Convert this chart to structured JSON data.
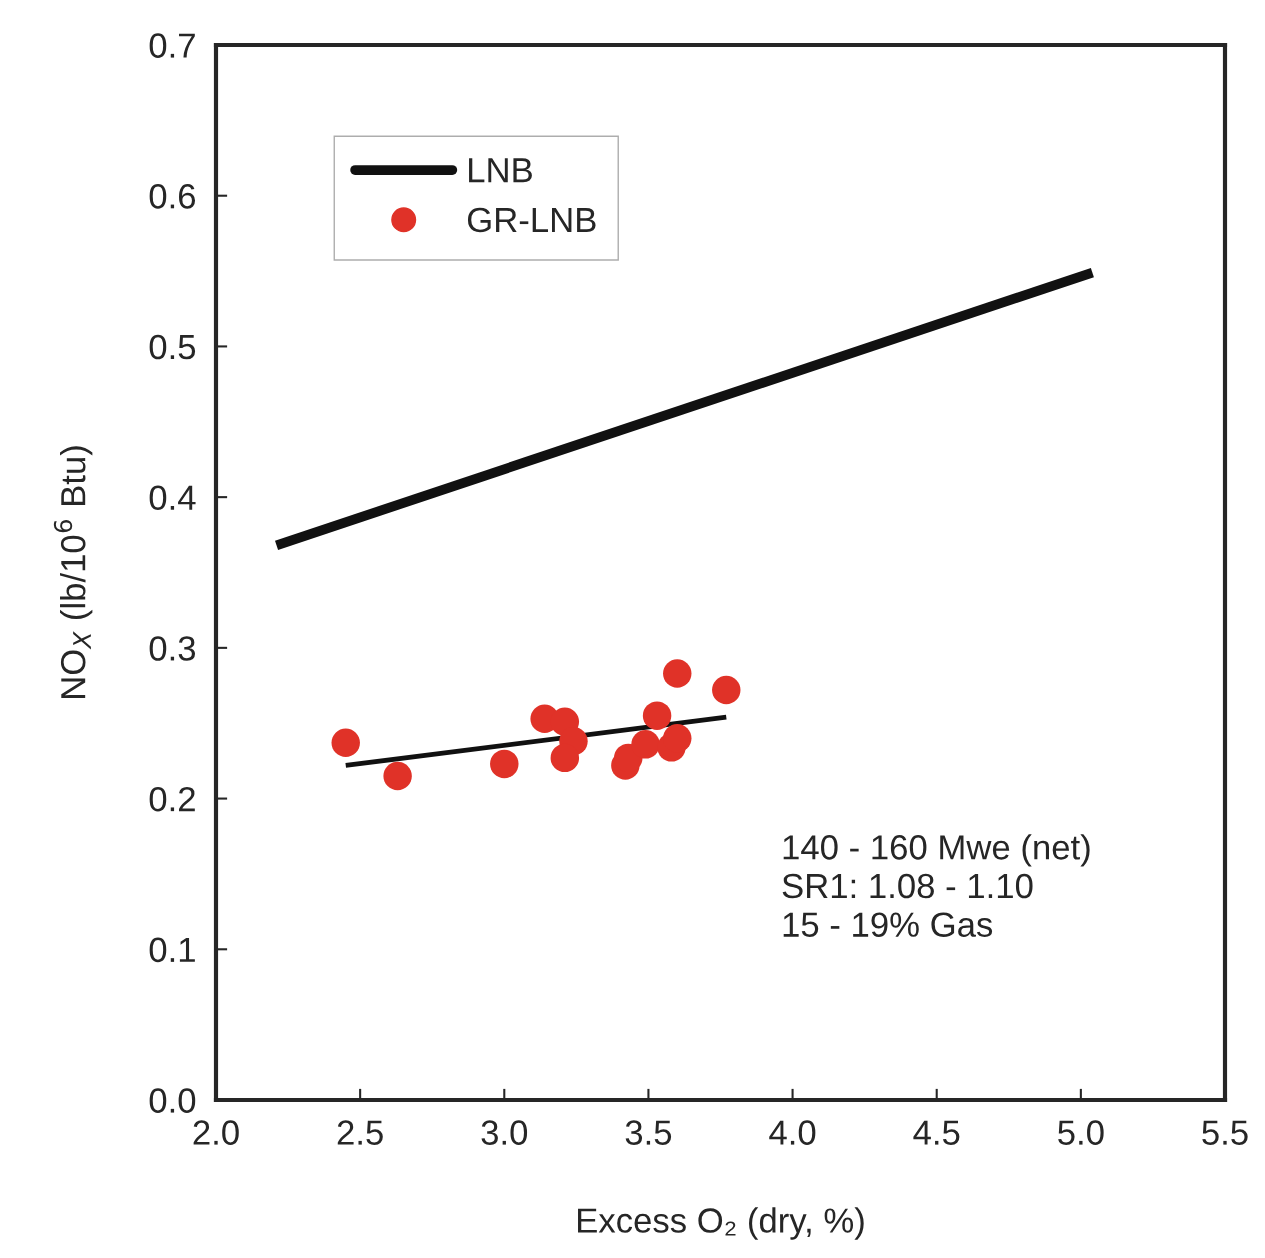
{
  "chart_data": {
    "type": "scatter",
    "xlabel": "Excess O₂ (dry, %)",
    "ylabel": "NO$_{X}$ (lb/10$^{6}$ Btu)",
    "xlim": [
      2.0,
      5.5
    ],
    "ylim": [
      0.0,
      0.7
    ],
    "xticks": [
      {
        "value": 2.0,
        "label": "2.0"
      },
      {
        "value": 2.5,
        "label": "2.5"
      },
      {
        "value": 3.0,
        "label": "3.0"
      },
      {
        "value": 3.5,
        "label": "3.5"
      },
      {
        "value": 4.0,
        "label": "4.0"
      },
      {
        "value": 4.5,
        "label": "4.5"
      },
      {
        "value": 5.0,
        "label": "5.0"
      },
      {
        "value": 5.5,
        "label": "5.5"
      }
    ],
    "yticks": [
      {
        "value": 0.0,
        "label": "0.0"
      },
      0.1,
      0.2,
      0.3,
      0.4,
      0.5,
      0.6,
      0.7
    ],
    "grid": false,
    "legend": "top left",
    "series": [
      {
        "name": "LNB",
        "type": "line",
        "color": "#111111",
        "x": [
          2.21,
          5.04
        ],
        "values": [
          0.368,
          0.549
        ]
      },
      {
        "name": "GR-LNB",
        "color": "#e03228",
        "marker": "circle",
        "x": [
          2.45,
          2.63,
          3.0,
          3.14,
          3.21,
          3.24,
          3.21,
          3.42,
          3.43,
          3.49,
          3.53,
          3.58,
          3.6,
          3.6,
          3.77
        ],
        "values": [
          0.237,
          0.215,
          0.223,
          0.253,
          0.251,
          0.238,
          0.227,
          0.222,
          0.227,
          0.236,
          0.255,
          0.234,
          0.24,
          0.283,
          0.272
        ]
      },
      {
        "type": "line",
        "color": "#111111",
        "x": [
          2.45,
          3.77
        ],
        "values": [
          0.222,
          0.254
        ]
      }
    ],
    "annotations": [
      "140 - 160 Mwe (net)\nSR1: 1.08 - 1.10\n15 - 19% Gas"
    ]
  }
}
